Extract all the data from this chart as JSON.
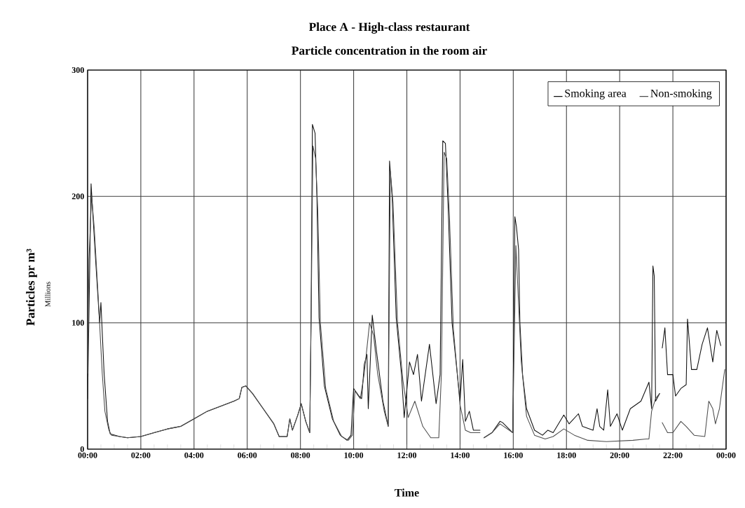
{
  "chart_data": {
    "type": "line",
    "title": "Place A - High-class restaurant",
    "subtitle": "Particle concentration in the room air",
    "xlabel": "Time",
    "ylabel": "Particles pr m³",
    "annotations": [
      "Millions"
    ],
    "xlim": [
      0,
      24
    ],
    "xticks": [
      {
        "value": 0,
        "label": "00:00"
      },
      {
        "value": 2,
        "label": "02:00"
      },
      {
        "value": 4,
        "label": "04:00"
      },
      {
        "value": 6,
        "label": "06:00"
      },
      {
        "value": 8,
        "label": "08:00"
      },
      {
        "value": 10,
        "label": "10:00"
      },
      {
        "value": 12,
        "label": "12:00"
      },
      {
        "value": 14,
        "label": "14:00"
      },
      {
        "value": 16,
        "label": "16:00"
      },
      {
        "value": 18,
        "label": "18:00"
      },
      {
        "value": 20,
        "label": "20:00"
      },
      {
        "value": 22,
        "label": "22:00"
      },
      {
        "value": 24,
        "label": "00:00"
      }
    ],
    "ylim": [
      0,
      300
    ],
    "yticks": [
      0,
      100,
      200,
      300
    ],
    "grid": true,
    "legend": "top right",
    "marker": "none",
    "line_style": "solid",
    "series": [
      {
        "name": "Smoking area",
        "color": "#111111",
        "x": [
          0.0,
          0.13,
          0.2,
          0.3,
          0.45,
          0.5,
          0.62,
          0.75,
          0.85,
          1.2,
          1.5,
          2.0,
          2.5,
          3.0,
          3.5,
          4.0,
          4.5,
          5.0,
          5.5,
          5.7,
          5.8,
          5.95,
          6.2,
          6.6,
          7.0,
          7.2,
          7.5,
          7.6,
          7.7,
          7.9,
          8.03,
          8.2,
          8.35,
          8.4,
          8.45,
          8.55,
          8.62,
          8.7,
          8.9,
          9.2,
          9.5,
          9.75,
          9.9,
          10.0,
          10.2,
          10.3,
          10.4,
          10.5,
          10.55,
          10.7,
          10.85,
          11.1,
          11.3,
          11.35,
          11.45,
          11.6,
          11.8,
          11.9,
          12.1,
          12.25,
          12.4,
          12.55,
          12.85,
          13.1,
          13.25,
          13.35,
          13.45,
          13.55,
          13.7,
          14.0,
          14.1,
          14.2,
          14.35,
          14.5,
          14.75,
          14.8,
          14.9,
          15.2,
          15.5,
          15.6,
          15.98,
          16.06,
          16.12,
          16.2,
          16.25,
          16.35,
          16.5,
          16.8,
          17.1,
          17.3,
          17.5,
          17.9,
          18.1,
          18.45,
          18.6,
          19.0,
          19.15,
          19.25,
          19.4,
          19.55,
          19.65,
          19.9,
          20.1,
          20.4,
          20.8,
          21.1,
          21.2,
          21.25,
          21.3,
          21.35,
          21.5,
          21.55,
          21.6,
          21.7,
          21.8,
          22.0,
          22.1,
          22.3,
          22.5,
          22.55,
          22.7,
          22.9,
          23.1,
          23.3,
          23.5,
          23.65,
          23.8
        ],
        "values": [
          40,
          210,
          185,
          150,
          100,
          116,
          60,
          22,
          12,
          10,
          9,
          10,
          13,
          16,
          18,
          24,
          30,
          34,
          38,
          40,
          49,
          50,
          44,
          32,
          20,
          10,
          10,
          24,
          15,
          27,
          36,
          22,
          13,
          104,
          257,
          250,
          199,
          104,
          50,
          24,
          11,
          7,
          11,
          48,
          42,
          40,
          67,
          75,
          32,
          106,
          79,
          38,
          18,
          228,
          199,
          104,
          59,
          25,
          69,
          59,
          75,
          38,
          83,
          36,
          59,
          244,
          242,
          193,
          100,
          38,
          71,
          22,
          30,
          15,
          15,
          null,
          9,
          13,
          22,
          21,
          13,
          184,
          176,
          158,
          100,
          59,
          32,
          15,
          11,
          15,
          13,
          27,
          20,
          28,
          18,
          15,
          32,
          18,
          15,
          47,
          18,
          28,
          15,
          32,
          38,
          53,
          32,
          145,
          137,
          38,
          44,
          null,
          80,
          96,
          59,
          59,
          42,
          48,
          51,
          103,
          63,
          63,
          83,
          96,
          69,
          94,
          82
        ]
      },
      {
        "name": "Non-smoking",
        "color": "#4d4d4d",
        "x": [
          0.0,
          0.05,
          0.15,
          0.25,
          0.4,
          0.55,
          0.65,
          0.8,
          0.9,
          1.2,
          1.5,
          2.0,
          2.5,
          3.0,
          3.5,
          4.0,
          4.5,
          5.0,
          5.5,
          5.7,
          5.8,
          5.95,
          6.2,
          6.6,
          7.0,
          7.2,
          7.5,
          7.6,
          7.7,
          7.9,
          8.03,
          8.2,
          8.35,
          8.4,
          8.47,
          8.57,
          8.65,
          8.75,
          8.95,
          9.25,
          9.55,
          9.8,
          9.95,
          10.05,
          10.25,
          10.4,
          10.6,
          10.75,
          10.9,
          11.15,
          11.3,
          11.38,
          11.48,
          11.65,
          11.85,
          12.05,
          12.3,
          12.6,
          12.9,
          13.2,
          13.3,
          13.4,
          13.5,
          13.6,
          13.75,
          14.0,
          14.2,
          14.4,
          14.75,
          14.8,
          14.9,
          15.2,
          15.5,
          15.98,
          16.1,
          16.3,
          16.5,
          16.8,
          17.2,
          17.5,
          17.9,
          18.3,
          18.8,
          19.5,
          20.5,
          21.0,
          21.1,
          21.2,
          21.35,
          21.5,
          21.55,
          21.6,
          21.8,
          22.0,
          22.3,
          22.5,
          22.8,
          23.2,
          23.35,
          23.5,
          23.6,
          23.75,
          23.95
        ],
        "values": [
          60,
          150,
          200,
          175,
          120,
          60,
          30,
          15,
          11,
          10,
          9,
          10,
          13,
          16,
          18,
          24,
          30,
          34,
          38,
          40,
          49,
          50,
          44,
          32,
          20,
          10,
          10,
          24,
          15,
          27,
          36,
          22,
          13,
          100,
          240,
          230,
          190,
          100,
          48,
          22,
          10,
          7,
          11,
          46,
          40,
          60,
          100,
          90,
          60,
          30,
          18,
          220,
          195,
          100,
          55,
          25,
          38,
          18,
          9,
          9,
          60,
          235,
          230,
          185,
          95,
          35,
          15,
          13,
          13,
          null,
          9,
          13,
          20,
          13,
          161,
          69,
          26,
          11,
          8,
          10,
          16,
          11,
          7,
          6,
          7,
          8,
          8,
          30,
          40,
          44,
          null,
          21,
          13,
          13,
          22,
          18,
          11,
          10,
          38,
          32,
          20,
          32,
          63
        ]
      }
    ]
  }
}
